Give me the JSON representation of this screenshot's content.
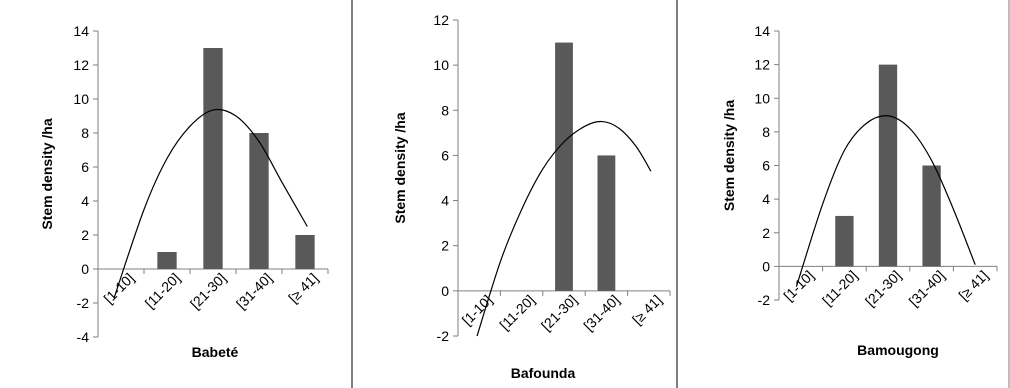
{
  "chart_data": [
    {
      "type": "bar",
      "categories": [
        "[1-10]",
        "[11-20]",
        "[21-30]",
        "[31-40]",
        "[≥ 41]"
      ],
      "values": [
        0,
        1,
        13,
        8,
        2
      ],
      "trend": "polynomial",
      "trend_points": [
        [
          0.85,
          -1.7
        ],
        [
          1.5,
          3.5
        ],
        [
          2.0,
          6.5
        ],
        [
          2.5,
          8.4
        ],
        [
          3.0,
          9.35
        ],
        [
          3.5,
          9.0
        ],
        [
          4.0,
          7.5
        ],
        [
          4.5,
          5.1
        ],
        [
          5.05,
          2.5
        ]
      ],
      "xlabel": "Babeté",
      "ylabel": "Stem density /ha",
      "ylim": [
        -4,
        14
      ],
      "yticks": [
        -4,
        -2,
        0,
        2,
        4,
        6,
        8,
        10,
        12,
        14
      ],
      "bar_color": "#595959"
    },
    {
      "type": "bar",
      "categories": [
        "[1-10]",
        "[11-20]",
        "[21-30]",
        "[31-40]",
        "[≥ 41]"
      ],
      "values": [
        0,
        0,
        11,
        6,
        0
      ],
      "trend": "polynomial",
      "trend_points": [
        [
          0.95,
          -2.0
        ],
        [
          1.5,
          1.3
        ],
        [
          2.0,
          3.6
        ],
        [
          2.5,
          5.4
        ],
        [
          3.0,
          6.6
        ],
        [
          3.5,
          7.3
        ],
        [
          3.9,
          7.5
        ],
        [
          4.3,
          7.2
        ],
        [
          4.7,
          6.4
        ],
        [
          5.05,
          5.3
        ]
      ],
      "xlabel": "Bafounda",
      "ylabel": "Stem density /ha",
      "ylim": [
        -2,
        12
      ],
      "yticks": [
        -2,
        0,
        2,
        4,
        6,
        8,
        10,
        12
      ],
      "bar_color": "#595959"
    },
    {
      "type": "bar",
      "categories": [
        "[1-10]",
        "[11-20]",
        "[21-30]",
        "[31-40]",
        "[≥ 41]"
      ],
      "values": [
        0,
        3,
        12,
        6,
        0
      ],
      "trend": "polynomial",
      "trend_points": [
        [
          0.9,
          -1.2
        ],
        [
          1.5,
          3.7
        ],
        [
          2.0,
          6.9
        ],
        [
          2.5,
          8.5
        ],
        [
          3.0,
          8.95
        ],
        [
          3.5,
          8.2
        ],
        [
          4.0,
          6.3
        ],
        [
          4.5,
          3.4
        ],
        [
          5.0,
          0.1
        ]
      ],
      "xlabel": "Bamougong",
      "ylabel": "Stem density /ha",
      "ylim": [
        -2,
        14
      ],
      "yticks": [
        -2,
        0,
        2,
        4,
        6,
        8,
        10,
        12,
        14
      ],
      "bar_color": "#595959"
    }
  ]
}
